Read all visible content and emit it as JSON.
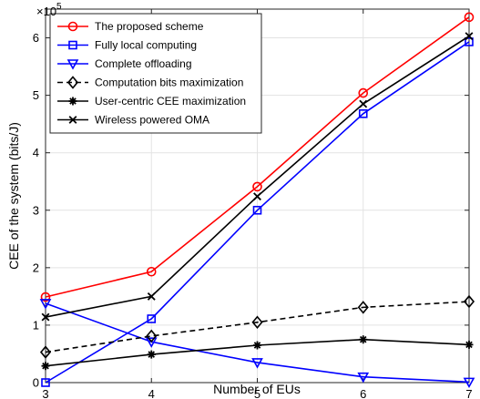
{
  "chart_data": {
    "type": "line",
    "title": "",
    "xlabel": "Number of EUs",
    "ylabel": "CEE of the system (bits/J)",
    "y_exponent_label": "×10",
    "y_exponent_power": "5",
    "xlim": [
      3,
      7
    ],
    "ylim": [
      0,
      6.5
    ],
    "y_scale_factor": 100000,
    "x_ticks": [
      3,
      4,
      5,
      6,
      7
    ],
    "x_tick_labels": [
      "3",
      "4",
      "5",
      "6",
      "7"
    ],
    "y_ticks": [
      0,
      1,
      2,
      3,
      4,
      5,
      6
    ],
    "y_tick_labels": [
      "0",
      "1",
      "2",
      "3",
      "4",
      "5",
      "6"
    ],
    "grid": true,
    "legend_position": "top-left",
    "x": [
      3,
      4,
      5,
      6,
      7
    ],
    "series": [
      {
        "name": "The proposed scheme",
        "values": [
          1.49,
          1.93,
          3.41,
          5.04,
          6.36
        ],
        "color": "#ff0000",
        "marker": "circle",
        "dash": "solid"
      },
      {
        "name": "Fully local computing",
        "values": [
          0.0,
          1.11,
          3.0,
          4.68,
          5.93
        ],
        "color": "#0000ff",
        "marker": "square",
        "dash": "solid"
      },
      {
        "name": "Complete offloading",
        "values": [
          1.38,
          0.71,
          0.35,
          0.1,
          0.01
        ],
        "color": "#0000ff",
        "marker": "triangle-down",
        "dash": "solid"
      },
      {
        "name": "Computation bits maximization",
        "values": [
          0.53,
          0.81,
          1.05,
          1.31,
          1.41
        ],
        "color": "#000000",
        "marker": "diamond",
        "dash": "dashed"
      },
      {
        "name": "User-centric CEE maximization",
        "values": [
          0.29,
          0.49,
          0.65,
          0.75,
          0.66
        ],
        "color": "#000000",
        "marker": "asterisk",
        "dash": "solid"
      },
      {
        "name": "Wireless powered OMA",
        "values": [
          1.14,
          1.5,
          3.24,
          4.85,
          6.03
        ],
        "color": "#000000",
        "marker": "cross",
        "dash": "solid"
      }
    ]
  }
}
